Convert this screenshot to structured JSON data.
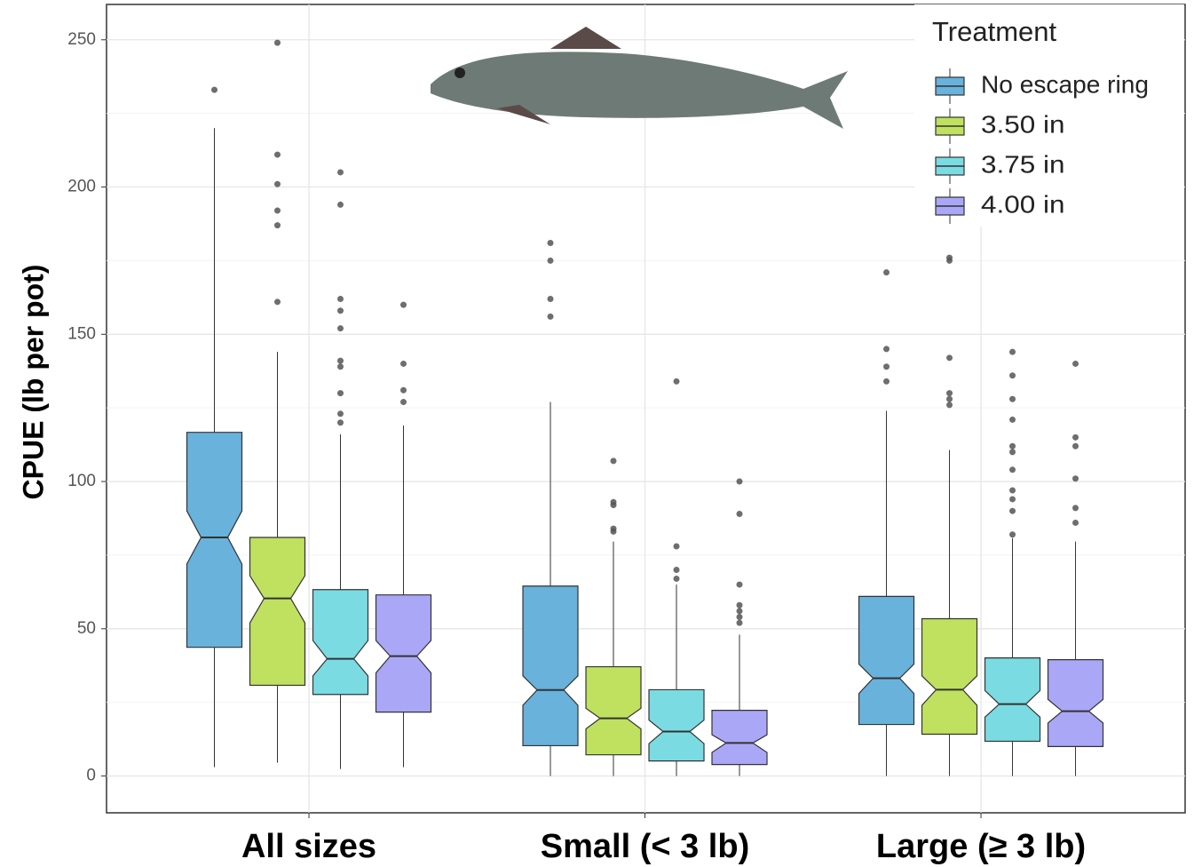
{
  "chart_data": {
    "type": "boxplot",
    "y_label": "CPUE (lb per pot)",
    "categories": [
      "All sizes",
      "Small (< 3 lb)",
      "Large (≥ 3 lb)"
    ],
    "legend_title": "Treatment",
    "legend_position": "top-right",
    "ylim": [
      -12.5,
      262
    ],
    "yticks": [
      0,
      50,
      100,
      150,
      200,
      250
    ],
    "minor_yticks": [
      25,
      75,
      125,
      175,
      225
    ],
    "grid": true,
    "series": [
      {
        "name": "No escape ring",
        "color": "#68b2dc",
        "boxes": [
          {
            "min": 3,
            "q1": 43.7,
            "median": 81,
            "q3": 116.7,
            "max": 220,
            "notch": [
              72,
              90
            ],
            "outliers": [
              233
            ]
          },
          {
            "min": 0,
            "q1": 10.3,
            "median": 29.2,
            "q3": 64.5,
            "max": 127,
            "notch": [
              24,
              34
            ],
            "outliers": [
              181,
              175,
              162,
              156
            ]
          },
          {
            "min": 0,
            "q1": 17.5,
            "median": 33.2,
            "q3": 61,
            "max": 124,
            "notch": [
              28,
              38
            ],
            "outliers": [
              171,
              145,
              139,
              134
            ]
          }
        ]
      },
      {
        "name": "3.50 in",
        "color": "#bfe15f",
        "boxes": [
          {
            "min": 4.5,
            "q1": 30.8,
            "median": 60.3,
            "q3": 81,
            "max": 144,
            "notch": [
              52,
              68
            ],
            "outliers": [
              249,
              211,
              201,
              192,
              187,
              161
            ]
          },
          {
            "min": 0,
            "q1": 7.2,
            "median": 19.6,
            "q3": 37.1,
            "max": 79.6,
            "notch": [
              16,
              23
            ],
            "outliers": [
              107,
              93,
              92,
              84,
              83
            ]
          },
          {
            "min": 0,
            "q1": 14.2,
            "median": 29.3,
            "q3": 53.4,
            "max": 110.7,
            "notch": [
              24,
              34
            ],
            "outliers": [
              176,
              175,
              142,
              130,
              128,
              126
            ]
          }
        ]
      },
      {
        "name": "3.75 in",
        "color": "#7bdbe3",
        "boxes": [
          {
            "min": 2.4,
            "q1": 27.7,
            "median": 39.8,
            "q3": 63.3,
            "max": 116,
            "notch": [
              34,
              46
            ],
            "outliers": [
              205,
              194,
              162,
              158,
              152,
              141,
              139,
              130,
              123,
              120
            ]
          },
          {
            "min": 0,
            "q1": 5.1,
            "median": 15.1,
            "q3": 29.3,
            "max": 65,
            "notch": [
              11,
              19
            ],
            "outliers": [
              134,
              78,
              70,
              67
            ]
          },
          {
            "min": 0,
            "q1": 11.8,
            "median": 24.4,
            "q3": 40.1,
            "max": 80.8,
            "notch": [
              20,
              29
            ],
            "outliers": [
              144,
              136,
              128,
              121,
              112,
              110,
              104,
              97,
              94,
              90,
              82
            ]
          }
        ]
      },
      {
        "name": "4.00 in",
        "color": "#aba7f7",
        "boxes": [
          {
            "min": 3,
            "q1": 21.7,
            "median": 40.7,
            "q3": 61.5,
            "max": 119,
            "notch": [
              35,
              46
            ],
            "outliers": [
              160,
              140,
              131,
              127
            ]
          },
          {
            "min": 0,
            "q1": 3.9,
            "median": 11.2,
            "q3": 22.3,
            "max": 48,
            "notch": [
              8,
              14
            ],
            "outliers": [
              100,
              89,
              65,
              58,
              56,
              54,
              52
            ]
          },
          {
            "min": 0,
            "q1": 10,
            "median": 22,
            "q3": 39.5,
            "max": 79.6,
            "notch": [
              18,
              26
            ],
            "outliers": [
              140,
              115,
              112,
              101,
              91,
              86
            ]
          }
        ]
      }
    ]
  }
}
